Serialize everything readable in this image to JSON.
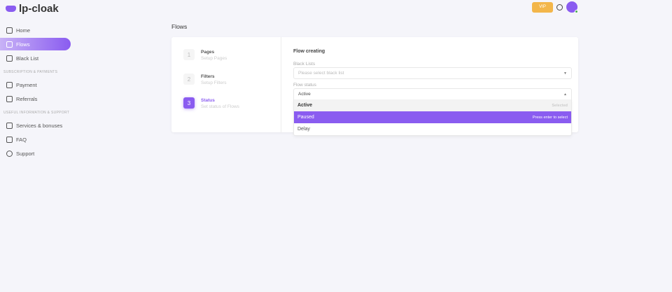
{
  "app": {
    "name": "lp-cloak"
  },
  "sidebar": {
    "items": [
      {
        "label": "Home",
        "icon": "home-icon"
      },
      {
        "label": "Flows",
        "icon": "flows-icon",
        "active": true
      },
      {
        "label": "Black List",
        "icon": "list-icon"
      }
    ],
    "sections": [
      {
        "title": "SUBSCRIPTION & PAYMENTS",
        "items": [
          {
            "label": "Payment",
            "icon": "card-icon"
          },
          {
            "label": "Referrals",
            "icon": "user-plus-icon"
          }
        ]
      },
      {
        "title": "USEFUL INFORMATION & SUPPORT",
        "items": [
          {
            "label": "Services & bonuses",
            "icon": "gift-icon"
          },
          {
            "label": "FAQ",
            "icon": "faq-icon"
          },
          {
            "label": "Support",
            "icon": "lifebuoy-icon"
          }
        ]
      }
    ]
  },
  "header": {
    "vip": "VIP"
  },
  "page": {
    "title": "Flows"
  },
  "steps": [
    {
      "num": "1",
      "title": "Pages",
      "sub": "Setup Pages"
    },
    {
      "num": "2",
      "title": "Filters",
      "sub": "Setup Filters"
    },
    {
      "num": "3",
      "title": "Status",
      "sub": "Set status of Flows",
      "active": true
    }
  ],
  "form": {
    "title": "Flow creating",
    "black_lists_label": "Black Lists",
    "black_lists_placeholder": "Please select black list",
    "status_label": "Flow status",
    "status_value": "Active",
    "options": [
      {
        "label": "Active",
        "hint": "Selected"
      },
      {
        "label": "Paused",
        "hint": "Press enter to select"
      },
      {
        "label": "Delay",
        "hint": ""
      }
    ]
  },
  "colors": {
    "accent": "#8a5cf0",
    "vip": "#f3b64a"
  }
}
